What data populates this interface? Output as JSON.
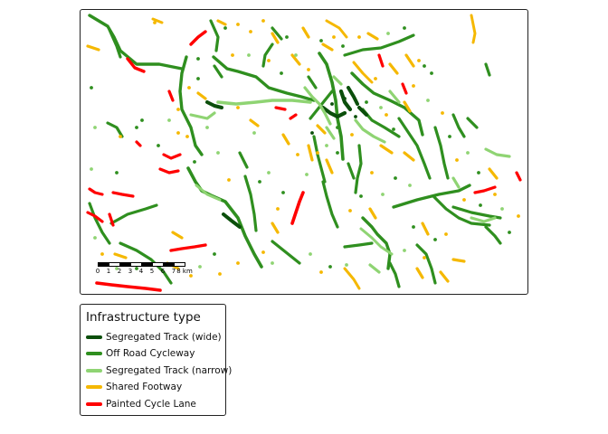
{
  "legend": {
    "title": "Infrastructure type",
    "items": [
      {
        "label": "Segregated Track (wide)",
        "color": "#0b4f0b"
      },
      {
        "label": "Off Road Cycleway",
        "color": "#2f8f1f"
      },
      {
        "label": "Segregated Track (narrow)",
        "color": "#8fd473"
      },
      {
        "label": "Shared Footway",
        "color": "#f5b800"
      },
      {
        "label": "Painted Cycle Lane",
        "color": "#ff0000"
      }
    ]
  },
  "scalebar": {
    "ticks": [
      "0",
      "1",
      "2",
      "3",
      "4",
      "5",
      "6",
      "7",
      "8"
    ],
    "unit": "km"
  }
}
